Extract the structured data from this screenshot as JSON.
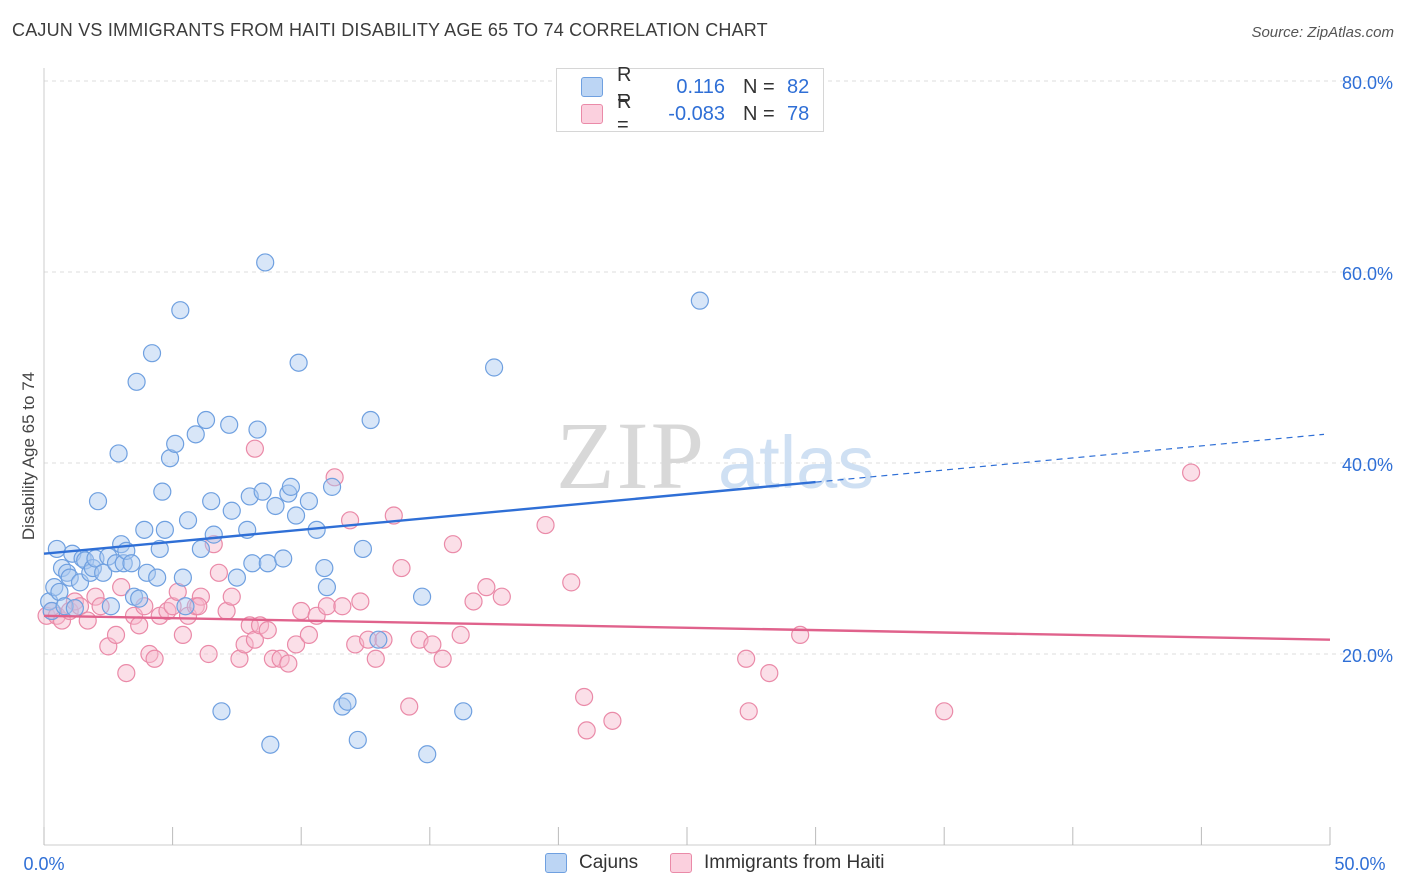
{
  "header": {
    "title": "CAJUN VS IMMIGRANTS FROM HAITI DISABILITY AGE 65 TO 74 CORRELATION CHART",
    "source": "Source: ZipAtlas.com"
  },
  "watermark": {
    "zip": "ZIP",
    "atlas": "atlas"
  },
  "legend": {
    "rows": [
      {
        "r_label": "R =",
        "r_value": "0.116",
        "n_label": "N =",
        "n_value": "82",
        "color": "#a8c8f0",
        "stroke": "#6fa0e0"
      },
      {
        "r_label": "R =",
        "r_value": "-0.083",
        "n_label": "N =",
        "n_value": "78",
        "color": "#f7b8cc",
        "stroke": "#ea8aa8"
      }
    ]
  },
  "bottom_legend": {
    "cajuns": "Cajuns",
    "haiti": "Immigrants from Haiti"
  },
  "axis": {
    "ylabel": "Disability Age 65 to 74",
    "x_min_label": "0.0%",
    "x_max_label": "50.0%",
    "y_ticks": [
      "20.0%",
      "40.0%",
      "60.0%",
      "80.0%"
    ]
  },
  "chart_data": {
    "type": "scatter",
    "title": "CAJUN VS IMMIGRANTS FROM HAITI DISABILITY AGE 65 TO 74 CORRELATION CHART",
    "xlabel": "",
    "ylabel": "Disability Age 65 to 74",
    "xlim": [
      0,
      50
    ],
    "ylim": [
      0,
      85
    ],
    "y_gridlines": [
      20,
      40,
      60,
      80
    ],
    "grid": true,
    "legend_position": "top-center",
    "series": [
      {
        "name": "Cajuns",
        "color": "#a8c8f0",
        "stroke": "#6fa0e0",
        "trend": {
          "x0": 0,
          "y0": 30.5,
          "x1": 30,
          "y1": 38.0,
          "dashed_to_x": 50,
          "dashed_to_y": 43.0,
          "color": "#2f6fd6"
        },
        "points": [
          [
            0.2,
            25.5
          ],
          [
            0.3,
            24.5
          ],
          [
            0.4,
            27.0
          ],
          [
            0.5,
            31.0
          ],
          [
            0.6,
            26.5
          ],
          [
            0.7,
            29.0
          ],
          [
            0.8,
            25.0
          ],
          [
            0.9,
            28.5
          ],
          [
            1.0,
            28.0
          ],
          [
            1.1,
            30.5
          ],
          [
            1.2,
            24.8
          ],
          [
            1.4,
            27.5
          ],
          [
            1.5,
            30.0
          ],
          [
            1.6,
            29.8
          ],
          [
            1.8,
            28.5
          ],
          [
            1.9,
            29.0
          ],
          [
            2.0,
            30.0
          ],
          [
            2.1,
            36.0
          ],
          [
            2.3,
            28.5
          ],
          [
            2.5,
            30.2
          ],
          [
            2.6,
            25.0
          ],
          [
            2.8,
            29.5
          ],
          [
            2.9,
            41.0
          ],
          [
            3.0,
            31.5
          ],
          [
            3.1,
            29.5
          ],
          [
            3.2,
            30.8
          ],
          [
            3.4,
            29.5
          ],
          [
            3.5,
            26.0
          ],
          [
            3.6,
            48.5
          ],
          [
            3.7,
            25.8
          ],
          [
            3.9,
            33.0
          ],
          [
            4.0,
            28.5
          ],
          [
            4.2,
            51.5
          ],
          [
            4.4,
            28.0
          ],
          [
            4.5,
            31.0
          ],
          [
            4.6,
            37.0
          ],
          [
            4.7,
            33.0
          ],
          [
            4.9,
            40.5
          ],
          [
            5.1,
            42.0
          ],
          [
            5.3,
            56.0
          ],
          [
            5.4,
            28.0
          ],
          [
            5.5,
            25.0
          ],
          [
            5.6,
            34.0
          ],
          [
            5.9,
            43.0
          ],
          [
            6.1,
            31.0
          ],
          [
            6.3,
            44.5
          ],
          [
            6.5,
            36.0
          ],
          [
            6.6,
            32.5
          ],
          [
            6.9,
            14.0
          ],
          [
            7.2,
            44.0
          ],
          [
            7.3,
            35.0
          ],
          [
            7.5,
            28.0
          ],
          [
            7.9,
            33.0
          ],
          [
            8.0,
            36.5
          ],
          [
            8.1,
            29.5
          ],
          [
            8.3,
            43.5
          ],
          [
            8.5,
            37.0
          ],
          [
            8.6,
            61.0
          ],
          [
            8.7,
            29.5
          ],
          [
            8.8,
            10.5
          ],
          [
            9.0,
            35.5
          ],
          [
            9.3,
            30.0
          ],
          [
            9.5,
            36.8
          ],
          [
            9.6,
            37.5
          ],
          [
            9.8,
            34.5
          ],
          [
            9.9,
            50.5
          ],
          [
            10.3,
            36.0
          ],
          [
            10.6,
            33.0
          ],
          [
            10.9,
            29.0
          ],
          [
            11.0,
            27.0
          ],
          [
            11.2,
            37.5
          ],
          [
            11.6,
            14.5
          ],
          [
            11.8,
            15.0
          ],
          [
            12.2,
            11.0
          ],
          [
            12.4,
            31.0
          ],
          [
            12.7,
            44.5
          ],
          [
            13.0,
            21.5
          ],
          [
            14.7,
            26.0
          ],
          [
            14.9,
            9.5
          ],
          [
            16.3,
            14.0
          ],
          [
            17.5,
            50.0
          ],
          [
            25.5,
            57.0
          ]
        ]
      },
      {
        "name": "Immigrants from Haiti",
        "color": "#f7b8cc",
        "stroke": "#ea8aa8",
        "trend": {
          "x0": 0,
          "y0": 24.0,
          "x1": 50,
          "y1": 21.5,
          "color": "#e0628c"
        },
        "points": [
          [
            0.1,
            24.0
          ],
          [
            0.3,
            24.5
          ],
          [
            0.5,
            24.0
          ],
          [
            0.7,
            23.5
          ],
          [
            1.0,
            24.5
          ],
          [
            1.2,
            25.5
          ],
          [
            1.4,
            25.0
          ],
          [
            1.7,
            23.5
          ],
          [
            2.0,
            26.0
          ],
          [
            2.2,
            25.0
          ],
          [
            2.5,
            20.8
          ],
          [
            2.8,
            22.0
          ],
          [
            3.0,
            27.0
          ],
          [
            3.2,
            18.0
          ],
          [
            3.5,
            24.0
          ],
          [
            3.7,
            23.0
          ],
          [
            3.9,
            25.0
          ],
          [
            4.1,
            20.0
          ],
          [
            4.3,
            19.5
          ],
          [
            4.5,
            24.0
          ],
          [
            4.8,
            24.5
          ],
          [
            5.0,
            25.0
          ],
          [
            5.2,
            26.5
          ],
          [
            5.4,
            22.0
          ],
          [
            5.6,
            24.0
          ],
          [
            5.9,
            25.0
          ],
          [
            6.1,
            26.0
          ],
          [
            6.4,
            20.0
          ],
          [
            6.6,
            31.5
          ],
          [
            6.8,
            28.5
          ],
          [
            7.1,
            24.5
          ],
          [
            7.3,
            26.0
          ],
          [
            7.6,
            19.5
          ],
          [
            7.8,
            21.0
          ],
          [
            8.0,
            23.0
          ],
          [
            8.2,
            21.5
          ],
          [
            8.4,
            23.0
          ],
          [
            8.7,
            22.5
          ],
          [
            8.9,
            19.5
          ],
          [
            9.2,
            19.5
          ],
          [
            9.5,
            19.0
          ],
          [
            9.8,
            21.0
          ],
          [
            10.0,
            24.5
          ],
          [
            10.3,
            22.0
          ],
          [
            10.6,
            24.0
          ],
          [
            11.0,
            25.0
          ],
          [
            11.3,
            38.5
          ],
          [
            11.6,
            25.0
          ],
          [
            11.9,
            34.0
          ],
          [
            12.1,
            21.0
          ],
          [
            12.3,
            25.5
          ],
          [
            12.6,
            21.5
          ],
          [
            12.9,
            19.5
          ],
          [
            13.2,
            21.5
          ],
          [
            13.6,
            34.5
          ],
          [
            13.9,
            29.0
          ],
          [
            14.2,
            14.5
          ],
          [
            14.6,
            21.5
          ],
          [
            15.1,
            21.0
          ],
          [
            15.5,
            19.5
          ],
          [
            15.9,
            31.5
          ],
          [
            16.2,
            22.0
          ],
          [
            16.7,
            25.5
          ],
          [
            17.2,
            27.0
          ],
          [
            17.8,
            26.0
          ],
          [
            19.5,
            33.5
          ],
          [
            20.5,
            27.5
          ],
          [
            21.0,
            15.5
          ],
          [
            21.1,
            12.0
          ],
          [
            22.1,
            13.0
          ],
          [
            27.3,
            19.5
          ],
          [
            27.4,
            14.0
          ],
          [
            28.2,
            18.0
          ],
          [
            29.4,
            22.0
          ],
          [
            35.0,
            14.0
          ],
          [
            44.6,
            39.0
          ],
          [
            8.2,
            41.5
          ],
          [
            6.0,
            25.0
          ]
        ]
      }
    ]
  }
}
